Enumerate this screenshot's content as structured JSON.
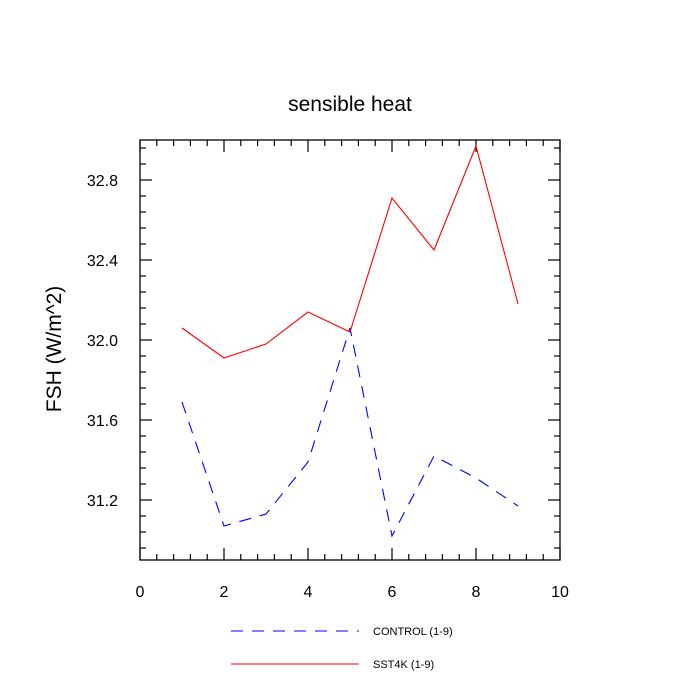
{
  "chart_data": {
    "type": "line",
    "title": "sensible heat",
    "xlabel": "",
    "ylabel": "FSH  (W/m^2)",
    "xlim": [
      0,
      10
    ],
    "ylim": [
      30.9,
      33.0
    ],
    "xticks": [
      0,
      2,
      4,
      6,
      8,
      10
    ],
    "xtick_labels": [
      "0",
      "2",
      "4",
      "6",
      "8",
      "10"
    ],
    "yticks": [
      31.2,
      31.6,
      32.0,
      32.4,
      32.8
    ],
    "ytick_labels": [
      "31.2",
      "31.6",
      "32.0",
      "32.4",
      "32.8"
    ],
    "grid": false,
    "legend_position": "bottom",
    "series": [
      {
        "name": "CONTROL (1-9)",
        "color": "#0000ff",
        "dash": "dashed",
        "x": [
          1,
          2,
          3,
          4,
          5,
          6,
          7,
          8,
          9
        ],
        "y": [
          31.69,
          31.07,
          31.13,
          31.39,
          32.06,
          31.02,
          31.42,
          31.31,
          31.17
        ]
      },
      {
        "name": "SST4K (1-9)",
        "color": "#ff0000",
        "dash": "solid",
        "x": [
          1,
          2,
          3,
          4,
          5,
          6,
          7,
          8,
          9
        ],
        "y": [
          32.06,
          31.91,
          31.98,
          32.14,
          32.04,
          32.71,
          32.45,
          32.97,
          32.18
        ]
      }
    ]
  }
}
